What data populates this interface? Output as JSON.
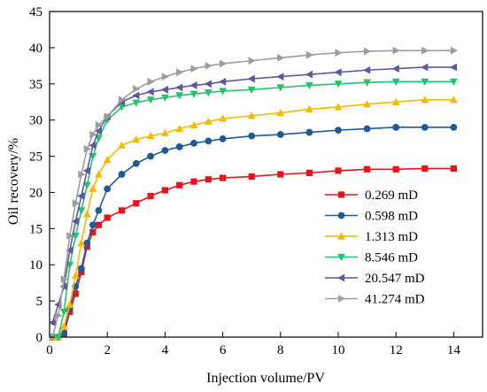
{
  "chart_data": {
    "type": "line",
    "title": "",
    "xlabel": "Injection volume/PV",
    "ylabel": "Oil recovery/%",
    "xlim": [
      0,
      15
    ],
    "ylim": [
      0,
      45
    ],
    "xticks": [
      0,
      2,
      4,
      6,
      8,
      10,
      12,
      14
    ],
    "yticks": [
      0,
      5,
      10,
      15,
      20,
      25,
      30,
      35,
      40,
      45
    ],
    "grid": false,
    "legend": "lower-right",
    "series": [
      {
        "name": "0.269 mD",
        "color": "#e8141c",
        "marker": "square",
        "x": [
          0.1,
          0.3,
          0.5,
          0.7,
          0.9,
          1.1,
          1.3,
          1.5,
          1.7,
          2.0,
          2.5,
          3.0,
          3.5,
          4.0,
          4.5,
          5.0,
          5.5,
          6.0,
          7.0,
          8.0,
          9.0,
          10.0,
          11.0,
          12.0,
          13.0,
          14.0
        ],
        "y": [
          0,
          0,
          0.5,
          3.5,
          6.0,
          9.0,
          12.5,
          14.5,
          15.5,
          16.5,
          17.5,
          18.5,
          19.5,
          20.3,
          21.0,
          21.5,
          21.8,
          22.0,
          22.2,
          22.5,
          22.7,
          23.0,
          23.2,
          23.2,
          23.3,
          23.3
        ]
      },
      {
        "name": "0.598 mD",
        "color": "#1f5a96",
        "marker": "circle",
        "x": [
          0.1,
          0.3,
          0.5,
          0.7,
          0.9,
          1.1,
          1.3,
          1.5,
          1.7,
          2.0,
          2.5,
          3.0,
          3.5,
          4.0,
          4.5,
          5.0,
          5.5,
          6.0,
          7.0,
          8.0,
          9.0,
          10.0,
          11.0,
          12.0,
          13.0,
          14.0
        ],
        "y": [
          0,
          0,
          0.5,
          4.0,
          7.0,
          9.5,
          13.0,
          15.5,
          17.5,
          20.5,
          22.5,
          24.0,
          25.0,
          25.8,
          26.3,
          26.8,
          27.1,
          27.4,
          27.8,
          28.0,
          28.3,
          28.6,
          28.8,
          29.0,
          29.0,
          29.0
        ]
      },
      {
        "name": "1.313 mD",
        "color": "#f6b900",
        "marker": "triangle-up",
        "x": [
          0.1,
          0.3,
          0.5,
          0.7,
          0.9,
          1.1,
          1.3,
          1.5,
          1.7,
          2.0,
          2.5,
          3.0,
          3.5,
          4.0,
          4.5,
          5.0,
          5.5,
          6.0,
          7.0,
          8.0,
          9.0,
          10.0,
          11.0,
          12.0,
          13.0,
          14.0
        ],
        "y": [
          0,
          0,
          1.5,
          4.5,
          8.5,
          13.0,
          17.0,
          20.5,
          22.5,
          24.5,
          26.5,
          27.3,
          27.8,
          28.2,
          28.8,
          29.3,
          29.8,
          30.2,
          30.6,
          31.0,
          31.5,
          31.8,
          32.2,
          32.5,
          32.8,
          32.8
        ]
      },
      {
        "name": "8.546 mD",
        "color": "#22c36a",
        "marker": "triangle-down",
        "x": [
          0.1,
          0.3,
          0.5,
          0.7,
          0.9,
          1.1,
          1.3,
          1.5,
          1.7,
          2.0,
          2.5,
          3.0,
          3.5,
          4.0,
          4.5,
          5.0,
          5.5,
          6.0,
          7.0,
          8.0,
          9.0,
          10.0,
          11.0,
          12.0,
          13.0,
          14.0
        ],
        "y": [
          0,
          0,
          3.5,
          10.0,
          14.0,
          17.5,
          21.0,
          25.0,
          27.5,
          30.0,
          31.8,
          32.4,
          32.8,
          33.1,
          33.4,
          33.6,
          33.8,
          34.0,
          34.2,
          34.5,
          34.8,
          35.0,
          35.2,
          35.3,
          35.3,
          35.3
        ]
      },
      {
        "name": "20.547 mD",
        "color": "#5f57a4",
        "marker": "triangle-left",
        "x": [
          0.1,
          0.3,
          0.5,
          0.7,
          0.9,
          1.1,
          1.3,
          1.5,
          1.7,
          2.0,
          2.5,
          3.0,
          3.5,
          4.0,
          4.5,
          5.0,
          5.5,
          6.0,
          7.0,
          8.0,
          9.0,
          10.0,
          11.0,
          12.0,
          13.0,
          14.0
        ],
        "y": [
          2.0,
          4.5,
          7.0,
          12.0,
          16.0,
          19.5,
          23.0,
          26.5,
          28.5,
          30.5,
          32.5,
          33.4,
          33.9,
          34.2,
          34.5,
          34.8,
          35.0,
          35.3,
          35.7,
          36.0,
          36.3,
          36.6,
          36.9,
          37.1,
          37.3,
          37.3
        ]
      },
      {
        "name": "41.274 mD",
        "color": "#9d9d9d",
        "marker": "triangle-right",
        "x": [
          0.1,
          0.3,
          0.5,
          0.7,
          0.9,
          1.1,
          1.3,
          1.5,
          1.7,
          2.0,
          2.5,
          3.0,
          3.5,
          4.0,
          4.5,
          5.0,
          5.5,
          6.0,
          7.0,
          8.0,
          9.0,
          10.0,
          11.0,
          12.0,
          13.0,
          14.0
        ],
        "y": [
          0,
          3.0,
          8.0,
          14.0,
          18.5,
          22.5,
          26.0,
          28.0,
          29.3,
          30.5,
          32.8,
          34.3,
          35.3,
          36.0,
          36.6,
          37.1,
          37.5,
          37.8,
          38.2,
          38.6,
          39.0,
          39.3,
          39.5,
          39.6,
          39.6,
          39.6
        ]
      }
    ]
  }
}
